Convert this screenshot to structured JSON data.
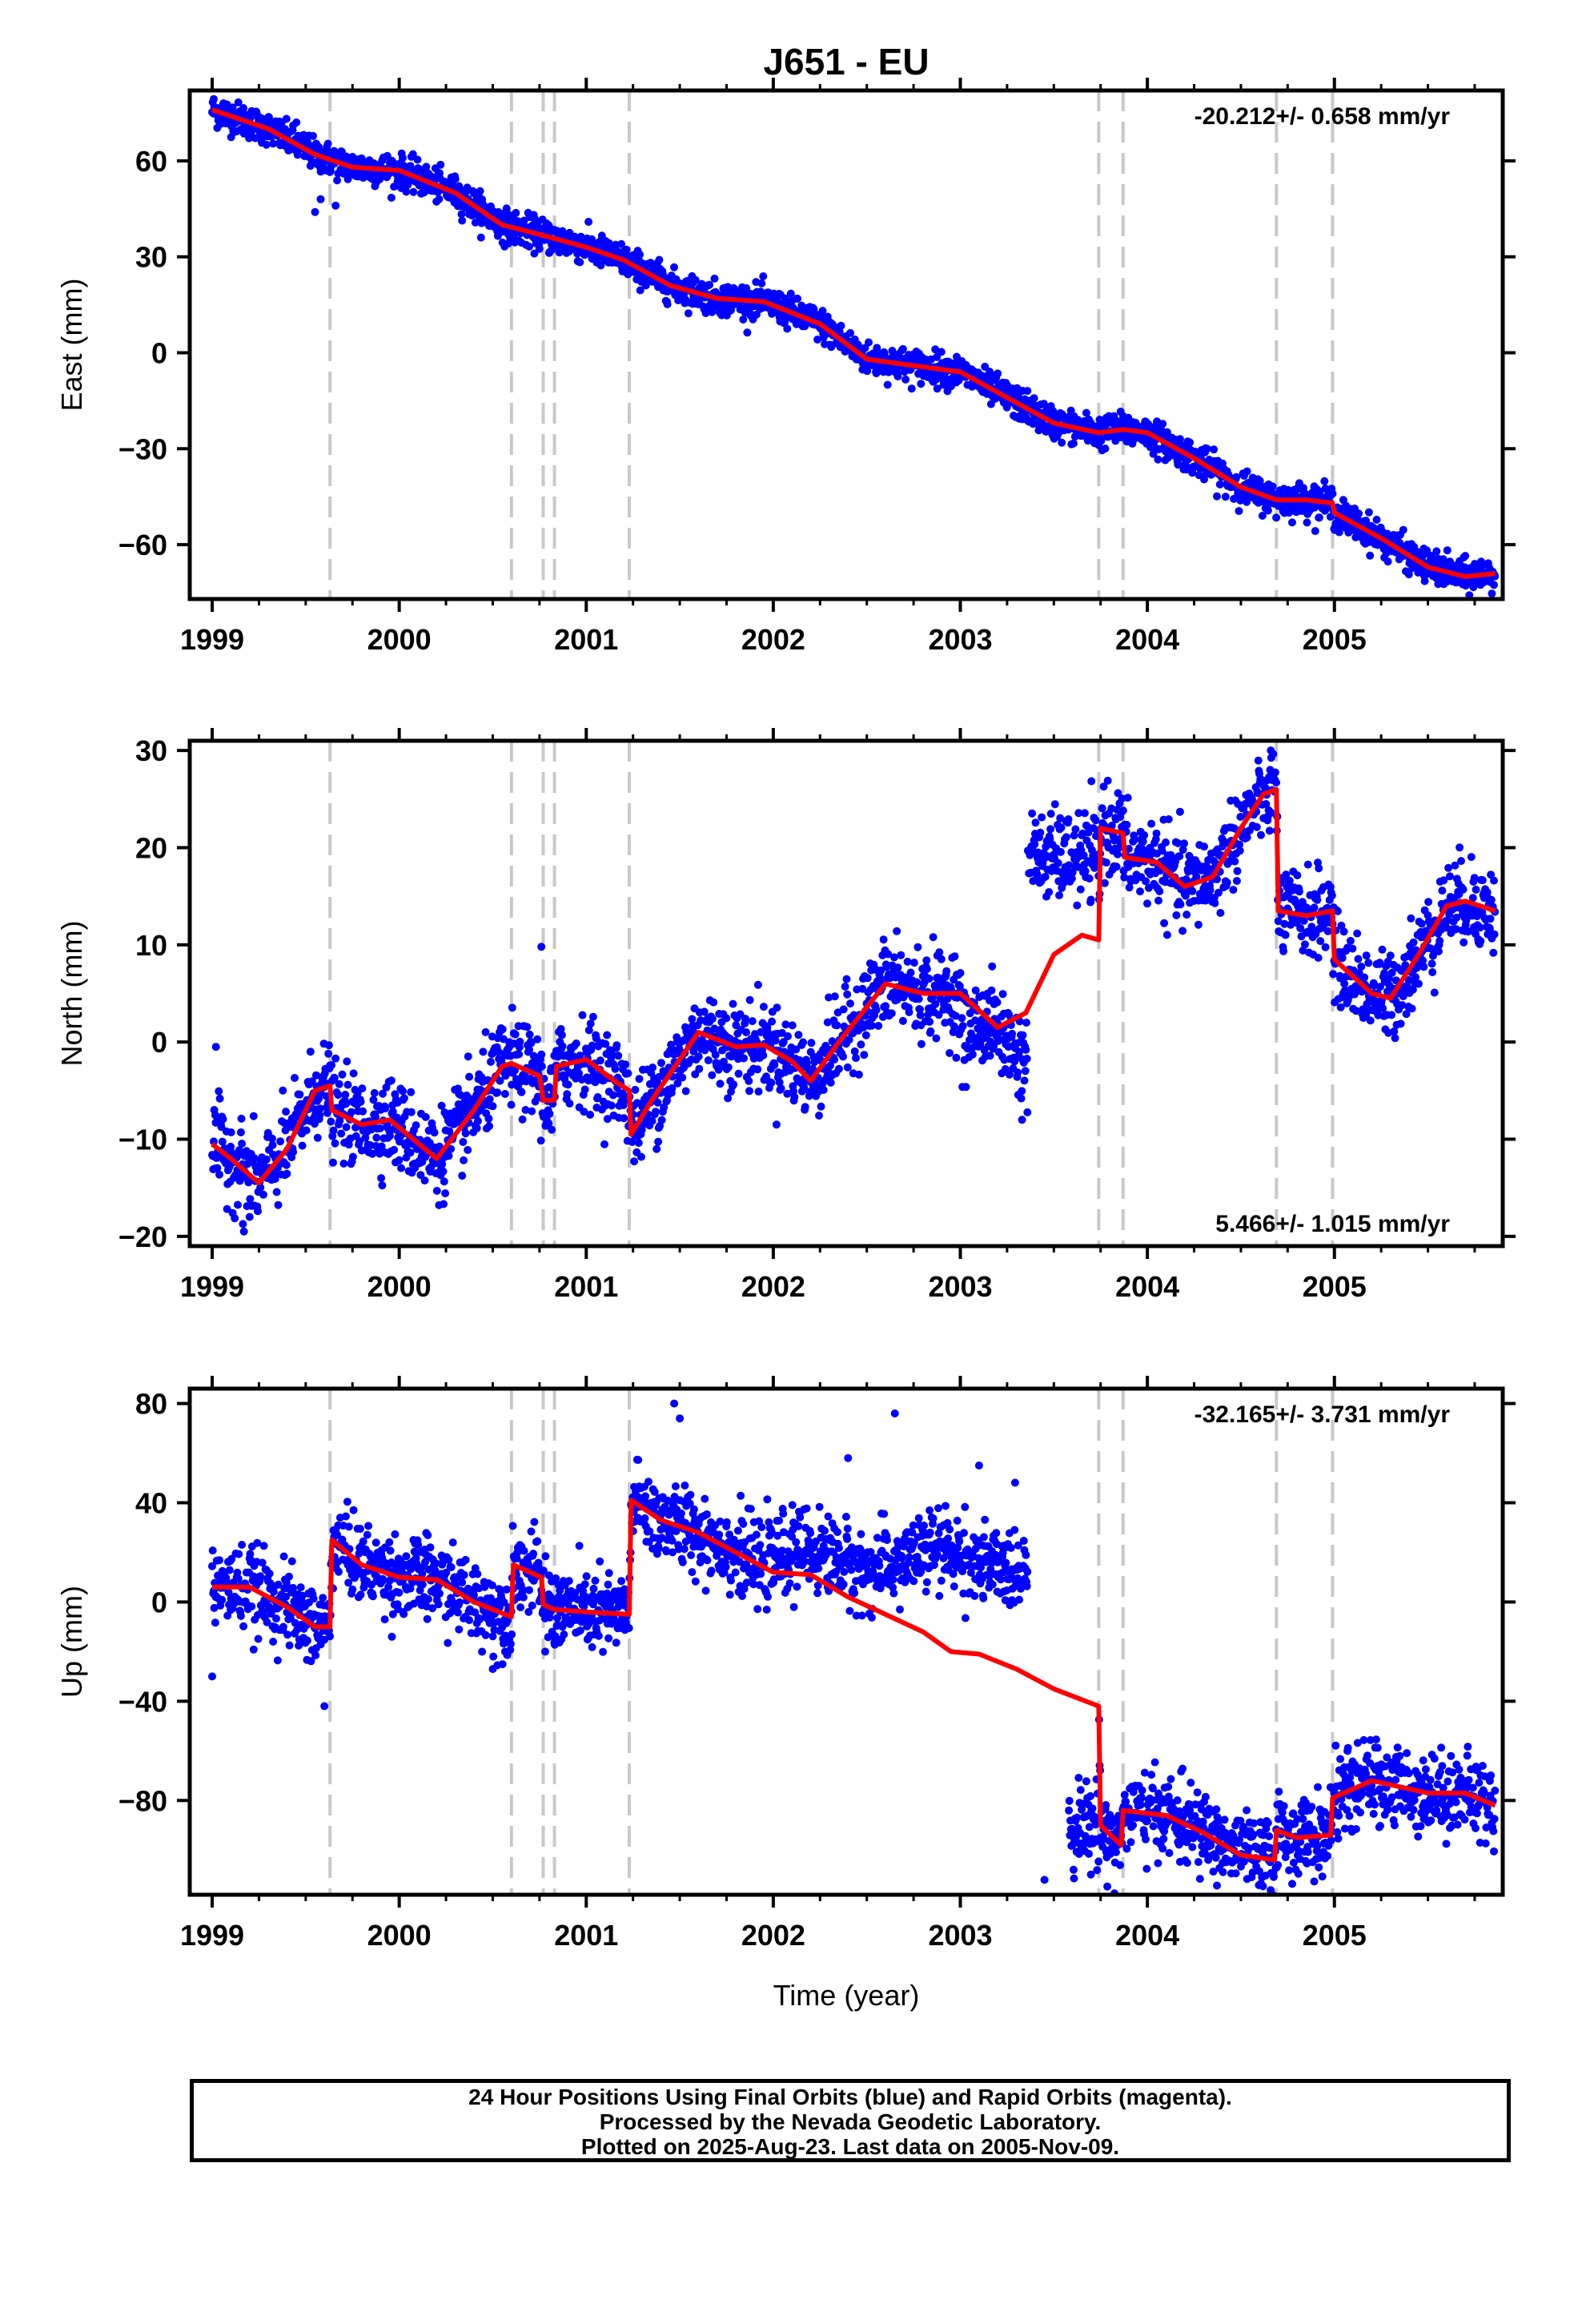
{
  "title": "J651 - EU",
  "footer": {
    "line1": "24 Hour Positions Using Final Orbits (blue) and Rapid Orbits (magenta).",
    "line2": "Processed by the Nevada Geodetic Laboratory.",
    "line3": "Plotted on 2025-Aug-23. Last data on 2005-Nov-09."
  },
  "colors": {
    "data_points": "#0000ff",
    "model_line": "#ff0000",
    "event_lines": "#c8c8c8",
    "axis": "#000000"
  },
  "chart_data": [
    {
      "type": "scatter",
      "ylabel": "East (mm)",
      "xlabel": "",
      "rate_label": "-20.212+/- 0.658 mm/yr",
      "xlim": [
        1998.88,
        2005.9
      ],
      "ylim": [
        -77,
        82
      ],
      "x_ticks": [
        "1999",
        "2000",
        "2001",
        "2002",
        "2003",
        "2004",
        "2005"
      ],
      "y_ticks": [
        "60",
        "30",
        "0",
        "−30",
        "−60"
      ],
      "y_tick_values": [
        60,
        30,
        0,
        -30,
        -60
      ],
      "event_lines_x": [
        1999.63,
        2000.6,
        2000.77,
        2000.83,
        2001.23,
        2003.74,
        2003.87,
        2004.69,
        2004.99
      ],
      "data_range": [
        1999.0,
        2005.86
      ],
      "gaps": [],
      "model": [
        [
          1999.0,
          76
        ],
        [
          1999.3,
          70
        ],
        [
          1999.55,
          62
        ],
        [
          1999.75,
          58
        ],
        [
          2000.0,
          57
        ],
        [
          2000.3,
          50
        ],
        [
          2000.55,
          40
        ],
        [
          2000.75,
          37
        ],
        [
          2001.0,
          33
        ],
        [
          2001.2,
          29
        ],
        [
          2001.45,
          21
        ],
        [
          2001.7,
          17
        ],
        [
          2001.95,
          16
        ],
        [
          2002.25,
          9
        ],
        [
          2002.5,
          -2
        ],
        [
          2002.75,
          -4
        ],
        [
          2003.0,
          -6
        ],
        [
          2003.25,
          -14
        ],
        [
          2003.5,
          -22
        ],
        [
          2003.74,
          -25
        ],
        [
          2003.87,
          -24
        ],
        [
          2004.0,
          -25
        ],
        [
          2004.25,
          -33
        ],
        [
          2004.5,
          -42
        ],
        [
          2004.69,
          -46
        ],
        [
          2004.85,
          -46
        ],
        [
          2004.99,
          -47
        ],
        [
          2005.0,
          -50
        ],
        [
          2005.25,
          -58
        ],
        [
          2005.5,
          -67
        ],
        [
          2005.7,
          -70
        ],
        [
          2005.86,
          -69
        ]
      ],
      "noise": 2.5,
      "outliers": [
        [
          1999.58,
          48
        ],
        [
          1999.55,
          44
        ],
        [
          1999.66,
          46
        ],
        [
          1999.45,
          72
        ],
        [
          2005.75,
          -66
        ],
        [
          1999.06,
          78
        ],
        [
          2001.38,
          28
        ]
      ]
    },
    {
      "type": "scatter",
      "ylabel": "North (mm)",
      "xlabel": "",
      "rate_label": "5.466+/- 1.015 mm/yr",
      "xlim": [
        1998.88,
        2005.9
      ],
      "ylim": [
        -21,
        31
      ],
      "x_ticks": [
        "1999",
        "2000",
        "2001",
        "2002",
        "2003",
        "2004",
        "2005"
      ],
      "y_ticks": [
        "30",
        "20",
        "10",
        "0",
        "−10",
        "−20"
      ],
      "y_tick_values": [
        30,
        20,
        10,
        0,
        -10,
        -20
      ],
      "event_lines_x": [
        1999.63,
        2000.6,
        2000.77,
        2000.83,
        2001.23,
        2003.74,
        2003.87,
        2004.69,
        2004.99
      ],
      "data_range": [
        1999.0,
        2005.86
      ],
      "gaps": [
        [
          2003.36,
          2003.36
        ]
      ],
      "model": [
        [
          1999.0,
          -10.5
        ],
        [
          1999.1,
          -12
        ],
        [
          1999.25,
          -14.5
        ],
        [
          1999.4,
          -11
        ],
        [
          1999.55,
          -5
        ],
        [
          1999.63,
          -4.5
        ],
        [
          1999.64,
          -7
        ],
        [
          1999.8,
          -8.5
        ],
        [
          1999.95,
          -8
        ],
        [
          2000.2,
          -12
        ],
        [
          2000.4,
          -7
        ],
        [
          2000.55,
          -2.5
        ],
        [
          2000.6,
          -2.2
        ],
        [
          2000.75,
          -3.5
        ],
        [
          2000.77,
          -6
        ],
        [
          2000.83,
          -6
        ],
        [
          2000.84,
          -2.5
        ],
        [
          2001.0,
          -1.8
        ],
        [
          2001.15,
          -4
        ],
        [
          2001.23,
          -5
        ],
        [
          2001.24,
          -9.5
        ],
        [
          2001.35,
          -6
        ],
        [
          2001.6,
          1
        ],
        [
          2001.8,
          -0.5
        ],
        [
          2001.95,
          -0.3
        ],
        [
          2002.1,
          -2
        ],
        [
          2002.2,
          -4
        ],
        [
          2002.35,
          0
        ],
        [
          2002.6,
          6
        ],
        [
          2002.8,
          5
        ],
        [
          2003.0,
          5
        ],
        [
          2003.2,
          1.5
        ],
        [
          2003.35,
          3
        ],
        [
          2003.5,
          9
        ],
        [
          2003.65,
          11
        ],
        [
          2003.74,
          10.5
        ],
        [
          2003.75,
          22
        ],
        [
          2003.87,
          21.5
        ],
        [
          2003.88,
          19
        ],
        [
          2004.05,
          18.5
        ],
        [
          2004.2,
          16
        ],
        [
          2004.35,
          17
        ],
        [
          2004.5,
          22
        ],
        [
          2004.62,
          25.5
        ],
        [
          2004.69,
          26
        ],
        [
          2004.7,
          13.5
        ],
        [
          2004.85,
          13
        ],
        [
          2004.99,
          13.5
        ],
        [
          2005.0,
          8.5
        ],
        [
          2005.2,
          5
        ],
        [
          2005.3,
          4.5
        ],
        [
          2005.45,
          9
        ],
        [
          2005.6,
          14
        ],
        [
          2005.7,
          14.5
        ],
        [
          2005.86,
          13.5
        ]
      ],
      "noise": 2.2,
      "outliers": [
        [
          2000.76,
          9.8
        ],
        [
          1999.17,
          -19.5
        ],
        [
          1999.2,
          -18
        ],
        [
          2002.66,
          11.4
        ],
        [
          2004.66,
          30
        ],
        [
          2003.33,
          -8
        ],
        [
          1999.02,
          -0.5
        ]
      ]
    },
    {
      "type": "scatter",
      "ylabel": "Up (mm)",
      "xlabel": "Time (year)",
      "rate_label": "-32.165+/- 3.731 mm/yr",
      "xlim": [
        1998.88,
        2005.9
      ],
      "ylim": [
        -118,
        86
      ],
      "x_ticks": [
        "1999",
        "2000",
        "2001",
        "2002",
        "2003",
        "2004",
        "2005"
      ],
      "y_ticks": [
        "80",
        "40",
        "0",
        "−40",
        "−80"
      ],
      "y_tick_values": [
        80,
        40,
        0,
        -40,
        -80
      ],
      "event_lines_x": [
        1999.63,
        2000.6,
        2000.77,
        2000.83,
        2001.23,
        2003.74,
        2003.87,
        2004.69,
        2004.99
      ],
      "data_range": [
        1999.0,
        2005.86
      ],
      "gaps": [
        [
          2003.36,
          2003.58
        ]
      ],
      "model": [
        [
          1999.0,
          6
        ],
        [
          1999.2,
          6
        ],
        [
          1999.4,
          -2
        ],
        [
          1999.55,
          -10
        ],
        [
          1999.63,
          -10
        ],
        [
          1999.64,
          25
        ],
        [
          1999.8,
          15
        ],
        [
          2000.0,
          10
        ],
        [
          2000.2,
          9
        ],
        [
          2000.4,
          0
        ],
        [
          2000.6,
          -6
        ],
        [
          2000.61,
          15
        ],
        [
          2000.76,
          10
        ],
        [
          2000.77,
          -1
        ],
        [
          2000.83,
          -3
        ],
        [
          2001.0,
          -4
        ],
        [
          2001.23,
          -5
        ],
        [
          2001.24,
          41
        ],
        [
          2001.4,
          33
        ],
        [
          2001.6,
          28
        ],
        [
          2001.8,
          20
        ],
        [
          2002.0,
          12
        ],
        [
          2002.2,
          11
        ],
        [
          2002.4,
          2
        ],
        [
          2002.6,
          -5
        ],
        [
          2002.8,
          -12
        ],
        [
          2002.95,
          -20
        ],
        [
          2003.1,
          -21
        ],
        [
          2003.3,
          -27
        ],
        [
          2003.5,
          -35
        ],
        [
          2003.74,
          -42
        ],
        [
          2003.75,
          -90
        ],
        [
          2003.86,
          -98
        ],
        [
          2003.87,
          -84
        ],
        [
          2004.1,
          -86
        ],
        [
          2004.3,
          -93
        ],
        [
          2004.5,
          -102
        ],
        [
          2004.68,
          -104
        ],
        [
          2004.69,
          -92
        ],
        [
          2004.8,
          -95
        ],
        [
          2004.98,
          -94
        ],
        [
          2004.99,
          -79
        ],
        [
          2005.2,
          -72
        ],
        [
          2005.5,
          -77
        ],
        [
          2005.7,
          -77
        ],
        [
          2005.86,
          -82
        ]
      ],
      "noise": 8,
      "outliers": [
        [
          1999.6,
          -42
        ],
        [
          1999.0,
          -30
        ],
        [
          2001.47,
          80
        ],
        [
          2001.5,
          74
        ],
        [
          2002.65,
          76
        ],
        [
          2002.4,
          58
        ],
        [
          2000.78,
          -20
        ],
        [
          2003.45,
          -112
        ],
        [
          2003.1,
          55
        ],
        [
          2000.5,
          -27
        ]
      ]
    }
  ]
}
